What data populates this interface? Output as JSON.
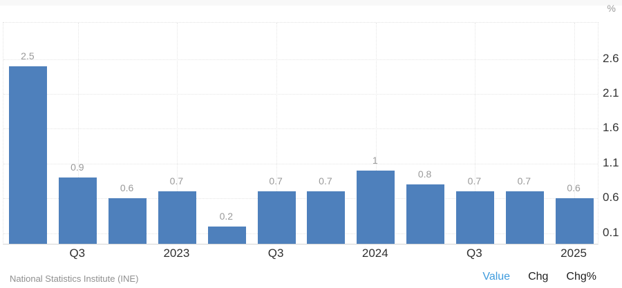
{
  "chart_data": {
    "type": "bar",
    "title": "",
    "ylabel": "%",
    "values": [
      2.5,
      0.9,
      0.6,
      0.7,
      0.2,
      0.7,
      0.7,
      1,
      0.8,
      0.7,
      0.7,
      0.6
    ],
    "bar_labels": [
      "2.5",
      "0.9",
      "0.6",
      "0.7",
      "0.2",
      "0.7",
      "0.7",
      "1",
      "0.8",
      "0.7",
      "0.7",
      "0.6"
    ],
    "x_ticks": [
      {
        "index": 1,
        "label": "Q3"
      },
      {
        "index": 3,
        "label": "2023"
      },
      {
        "index": 5,
        "label": "Q3"
      },
      {
        "index": 7,
        "label": "2024"
      },
      {
        "index": 9,
        "label": "Q3"
      },
      {
        "index": 11,
        "label": "2025"
      }
    ],
    "y_ticks": [
      0.1,
      0.6,
      1.1,
      1.6,
      2.1,
      2.6
    ],
    "ylim": [
      -0.07,
      3.12
    ],
    "bar_color": "#4e80bc",
    "grid": true,
    "legend_position": "none"
  },
  "footer": {
    "source": "National Statistics Institute (INE)",
    "legend": [
      "Value",
      "Chg",
      "Chg%"
    ],
    "active_legend": "Value"
  },
  "colors": {
    "bar": "#4e80bc",
    "bar_value_label": "#999999",
    "axis_tick_label": "#333333",
    "unit_label": "#9a9a9a",
    "legend_active": "#3e9bdd",
    "legend_inactive": "#1d1d1d",
    "source_text": "#8f8f8f",
    "gridline": "#e5e5e5"
  }
}
